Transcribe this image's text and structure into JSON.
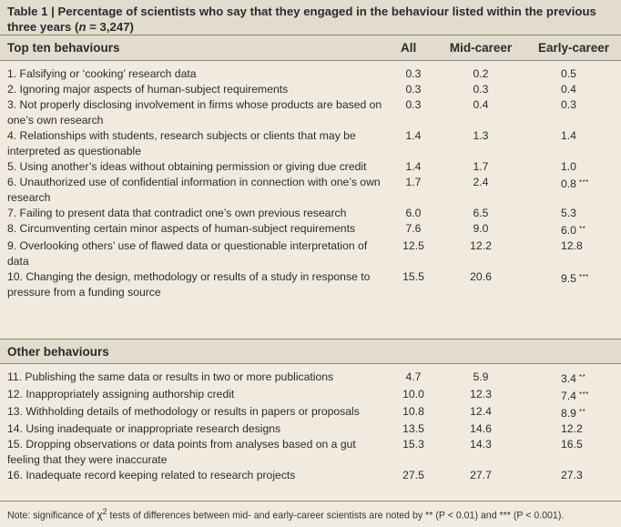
{
  "caption": {
    "tag": "Table 1",
    "separator": " | ",
    "text": "Percentage of scientists who say that they engaged in the behaviour listed within the previous three years (",
    "n_var": "n",
    "n_value": " = 3,247)"
  },
  "columns": {
    "all": "All",
    "mid": "Mid-career",
    "early": "Early-career"
  },
  "sections": {
    "top": {
      "title": "Top ten behaviours",
      "rows": [
        {
          "label": "1. Falsifying or ‘cooking’ research data",
          "all": "0.3",
          "mid": "0.2",
          "early": "0.5",
          "sig": ""
        },
        {
          "label": "2. Ignoring major aspects of human-subject requirements",
          "all": "0.3",
          "mid": "0.3",
          "early": "0.4",
          "sig": ""
        },
        {
          "label": "3. Not properly disclosing involvement in firms whose products are based on one’s own research",
          "all": "0.3",
          "mid": "0.4",
          "early": "0.3",
          "sig": ""
        },
        {
          "label": "4. Relationships with students, research subjects or clients that may be interpreted as questionable",
          "all": "1.4",
          "mid": "1.3",
          "early": "1.4",
          "sig": ""
        },
        {
          "label": "5. Using another’s ideas without obtaining permission or giving due credit",
          "all": "1.4",
          "mid": "1.7",
          "early": "1.0",
          "sig": ""
        },
        {
          "label": "6. Unauthorized use of confidential information in connection with one’s own research",
          "all": "1.7",
          "mid": "2.4",
          "early": "0.8",
          "sig": "***"
        },
        {
          "label": "7. Failing to present data that contradict one’s own previous research",
          "all": "6.0",
          "mid": "6.5",
          "early": "5.3",
          "sig": ""
        },
        {
          "label": "8. Circumventing certain minor aspects of human-subject requirements",
          "all": "7.6",
          "mid": "9.0",
          "early": "6.0",
          "sig": "**"
        },
        {
          "label": "9. Overlooking others’ use of flawed data or questionable interpretation of data",
          "all": "12.5",
          "mid": "12.2",
          "early": "12.8",
          "sig": ""
        },
        {
          "label": "10. Changing the design, methodology or results of a study in response to pressure from a funding source",
          "all": "15.5",
          "mid": "20.6",
          "early": "9.5",
          "sig": "***"
        }
      ]
    },
    "other": {
      "title": "Other behaviours",
      "rows": [
        {
          "label": "11. Publishing the same data or results in two or more publications",
          "all": "4.7",
          "mid": "5.9",
          "early": "3.4",
          "sig": "**"
        },
        {
          "label": "12. Inappropriately assigning authorship credit",
          "all": "10.0",
          "mid": "12.3",
          "early": "7.4",
          "sig": "***"
        },
        {
          "label": "13. Withholding details of methodology or results in papers or proposals",
          "all": "10.8",
          "mid": "12.4",
          "early": "8.9",
          "sig": "**"
        },
        {
          "label": "14. Using inadequate or inappropriate research designs",
          "all": "13.5",
          "mid": "14.6",
          "early": "12.2",
          "sig": ""
        },
        {
          "label": "15. Dropping observations or data points from analyses based on a gut feeling that they were inaccurate",
          "all": "15.3",
          "mid": "14.3",
          "early": "16.5",
          "sig": ""
        },
        {
          "label": "16. Inadequate record keeping related to research projects",
          "all": "27.5",
          "mid": "27.7",
          "early": "27.3",
          "sig": ""
        }
      ]
    }
  },
  "note": {
    "lead": "Note:  significance of ",
    "chi": "χ",
    "sup": "2",
    "mid": " tests of differences between mid- and early-career scientists are noted by ",
    "sig2": "** (P < 0.01)",
    "and": " and ",
    "sig3": "*** (P < 0.001)",
    "end": "."
  }
}
